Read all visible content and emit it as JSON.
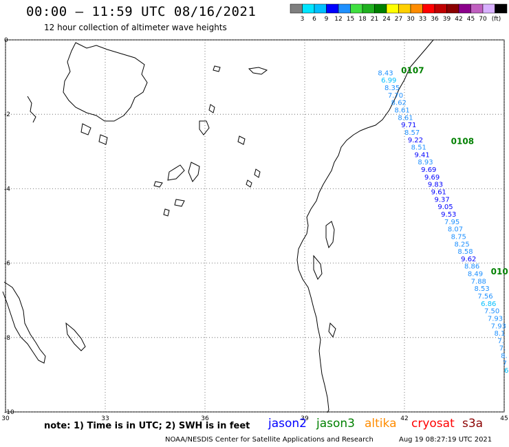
{
  "header": {
    "title": "00:00 – 11:59 UTC 08/16/2021",
    "subtitle": "12 hour collection of altimeter wave heights"
  },
  "colorbar": {
    "labels": [
      "3",
      "6",
      "9",
      "12",
      "15",
      "18",
      "21",
      "24",
      "27",
      "30",
      "33",
      "36",
      "39",
      "42",
      "45",
      "70"
    ],
    "unit": "(ft)",
    "colors": [
      "#7f7f7f",
      "#00e5ff",
      "#00bfff",
      "#0000ff",
      "#1e90ff",
      "#40e040",
      "#1fb01f",
      "#008000",
      "#ffff00",
      "#ffd000",
      "#ff8c00",
      "#ff0000",
      "#c00000",
      "#8b0000",
      "#8b008b",
      "#c060c0",
      "#d8b0ff",
      "#000000"
    ]
  },
  "axes": {
    "x_ticks": [
      "30",
      "33",
      "36",
      "39",
      "42",
      "45"
    ],
    "y_ticks": [
      "0",
      "-2",
      "-4",
      "-6",
      "-8",
      "-10"
    ],
    "lon_range": [
      30,
      45
    ],
    "lat_range": [
      -10,
      0
    ],
    "grid": "dotted"
  },
  "passes": [
    {
      "label": "0107",
      "lon": 41.9,
      "lat": -0.9
    },
    {
      "label": "0108",
      "lon": 43.4,
      "lat": -2.8
    },
    {
      "label": "010",
      "lon": 44.6,
      "lat": -6.3
    }
  ],
  "wave_heights": [
    {
      "v": "8.43",
      "lon": 41.2,
      "lat": -0.95,
      "c": "#1e90ff"
    },
    {
      "v": "6.99",
      "lon": 41.3,
      "lat": -1.15,
      "c": "#00bfff"
    },
    {
      "v": "8.35",
      "lon": 41.4,
      "lat": -1.35,
      "c": "#1e90ff"
    },
    {
      "v": "7.70",
      "lon": 41.5,
      "lat": -1.55,
      "c": "#1e90ff"
    },
    {
      "v": "8.62",
      "lon": 41.6,
      "lat": -1.75,
      "c": "#1e90ff"
    },
    {
      "v": "8.61",
      "lon": 41.7,
      "lat": -1.95,
      "c": "#1e90ff"
    },
    {
      "v": "8.61",
      "lon": 41.8,
      "lat": -2.15,
      "c": "#1e90ff"
    },
    {
      "v": "9.71",
      "lon": 41.9,
      "lat": -2.35,
      "c": "#0000ff"
    },
    {
      "v": "8.57",
      "lon": 42.0,
      "lat": -2.55,
      "c": "#1e90ff"
    },
    {
      "v": "9.22",
      "lon": 42.1,
      "lat": -2.75,
      "c": "#0000ff"
    },
    {
      "v": "8.51",
      "lon": 42.2,
      "lat": -2.95,
      "c": "#1e90ff"
    },
    {
      "v": "9.41",
      "lon": 42.3,
      "lat": -3.15,
      "c": "#0000ff"
    },
    {
      "v": "8.93",
      "lon": 42.4,
      "lat": -3.35,
      "c": "#1e90ff"
    },
    {
      "v": "9.69",
      "lon": 42.5,
      "lat": -3.55,
      "c": "#0000ff"
    },
    {
      "v": "9.69",
      "lon": 42.6,
      "lat": -3.75,
      "c": "#0000ff"
    },
    {
      "v": "9.83",
      "lon": 42.7,
      "lat": -3.95,
      "c": "#0000ff"
    },
    {
      "v": "9.61",
      "lon": 42.8,
      "lat": -4.15,
      "c": "#0000ff"
    },
    {
      "v": "9.37",
      "lon": 42.9,
      "lat": -4.35,
      "c": "#0000ff"
    },
    {
      "v": "9.05",
      "lon": 43.0,
      "lat": -4.55,
      "c": "#0000ff"
    },
    {
      "v": "9.53",
      "lon": 43.1,
      "lat": -4.75,
      "c": "#0000ff"
    },
    {
      "v": "7.95",
      "lon": 43.2,
      "lat": -4.95,
      "c": "#1e90ff"
    },
    {
      "v": "8.07",
      "lon": 43.3,
      "lat": -5.15,
      "c": "#1e90ff"
    },
    {
      "v": "8.75",
      "lon": 43.4,
      "lat": -5.35,
      "c": "#1e90ff"
    },
    {
      "v": "8.25",
      "lon": 43.5,
      "lat": -5.55,
      "c": "#1e90ff"
    },
    {
      "v": "8.58",
      "lon": 43.6,
      "lat": -5.75,
      "c": "#1e90ff"
    },
    {
      "v": "9.62",
      "lon": 43.7,
      "lat": -5.95,
      "c": "#0000ff"
    },
    {
      "v": "8.86",
      "lon": 43.8,
      "lat": -6.15,
      "c": "#1e90ff"
    },
    {
      "v": "8.49",
      "lon": 43.9,
      "lat": -6.35,
      "c": "#1e90ff"
    },
    {
      "v": "7.88",
      "lon": 44.0,
      "lat": -6.55,
      "c": "#1e90ff"
    },
    {
      "v": "8.53",
      "lon": 44.1,
      "lat": -6.75,
      "c": "#1e90ff"
    },
    {
      "v": "7.56",
      "lon": 44.2,
      "lat": -6.95,
      "c": "#1e90ff"
    },
    {
      "v": "6.86",
      "lon": 44.3,
      "lat": -7.15,
      "c": "#00bfff"
    },
    {
      "v": "7.50",
      "lon": 44.4,
      "lat": -7.35,
      "c": "#1e90ff"
    },
    {
      "v": "7.93",
      "lon": 44.5,
      "lat": -7.55,
      "c": "#1e90ff"
    },
    {
      "v": "7.93",
      "lon": 44.6,
      "lat": -7.75,
      "c": "#1e90ff"
    },
    {
      "v": "8.1",
      "lon": 44.7,
      "lat": -7.95,
      "c": "#1e90ff"
    },
    {
      "v": "7.",
      "lon": 44.8,
      "lat": -8.15,
      "c": "#1e90ff"
    },
    {
      "v": "7.",
      "lon": 44.85,
      "lat": -8.35,
      "c": "#1e90ff"
    },
    {
      "v": "8.",
      "lon": 44.9,
      "lat": -8.55,
      "c": "#1e90ff"
    },
    {
      "v": "7",
      "lon": 44.95,
      "lat": -8.75,
      "c": "#1e90ff"
    },
    {
      "v": "6",
      "lon": 45.0,
      "lat": -8.95,
      "c": "#00bfff"
    }
  ],
  "footer": {
    "note": "note: 1) Time is in UTC; 2) SWH is in feet",
    "satellites": [
      {
        "name": "jason2",
        "color": "#0000ff"
      },
      {
        "name": "jason3",
        "color": "#008000"
      },
      {
        "name": "altika",
        "color": "#ff8c00"
      },
      {
        "name": "cryosat",
        "color": "#ff0000"
      },
      {
        "name": "s3a",
        "color": "#8b0000"
      }
    ],
    "credit": "NOAA/NESDIS Center for Satellite Applications and Research",
    "timestamp": "Aug 19 08:27:19 UTC 2021"
  }
}
